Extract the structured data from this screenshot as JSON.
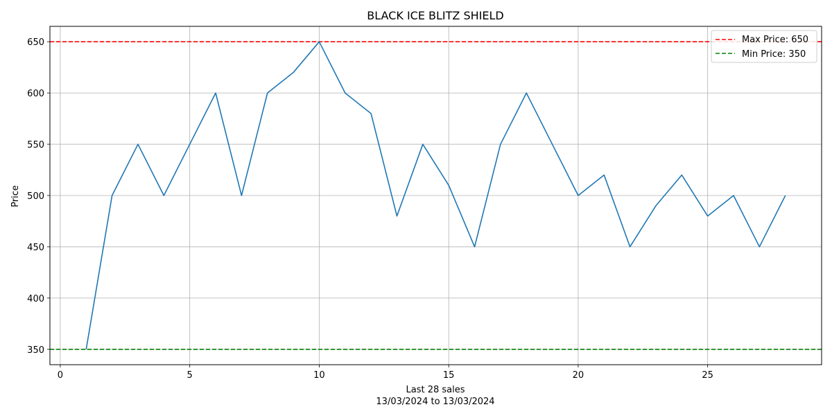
{
  "chart_data": {
    "type": "line",
    "title": "BLACK ICE BLITZ SHIELD",
    "xlabel_line1": "Last 28 sales",
    "xlabel_line2": "13/03/2024 to 13/03/2024",
    "ylabel": "Price",
    "x": [
      1,
      2,
      3,
      4,
      5,
      6,
      7,
      8,
      9,
      10,
      11,
      12,
      13,
      14,
      15,
      16,
      17,
      18,
      19,
      20,
      21,
      22,
      23,
      24,
      25,
      26,
      27,
      28
    ],
    "series": [
      {
        "color": "#1f77b4",
        "values": [
          350,
          500,
          550,
          500,
          550,
          600,
          500,
          600,
          620,
          650,
          600,
          580,
          480,
          550,
          510,
          450,
          550,
          600,
          550,
          500,
          520,
          450,
          490,
          520,
          480,
          500,
          450,
          500
        ]
      }
    ],
    "reference_lines": [
      {
        "label": "Max Price: 650",
        "value": 650,
        "color": "#ff0000",
        "style": "dashed"
      },
      {
        "label": "Min Price: 350",
        "value": 350,
        "color": "#008000",
        "style": "dashed"
      }
    ],
    "xlim": [
      -0.4,
      29.4
    ],
    "ylim": [
      335,
      665
    ],
    "xticks": [
      "0",
      "5",
      "10",
      "15",
      "20",
      "25"
    ],
    "xtick_values": [
      0,
      5,
      10,
      15,
      20,
      25
    ],
    "yticks": [
      "350",
      "400",
      "450",
      "500",
      "550",
      "600",
      "650"
    ],
    "ytick_values": [
      350,
      400,
      450,
      500,
      550,
      600,
      650
    ],
    "grid": true,
    "legend_position": "top-right"
  }
}
